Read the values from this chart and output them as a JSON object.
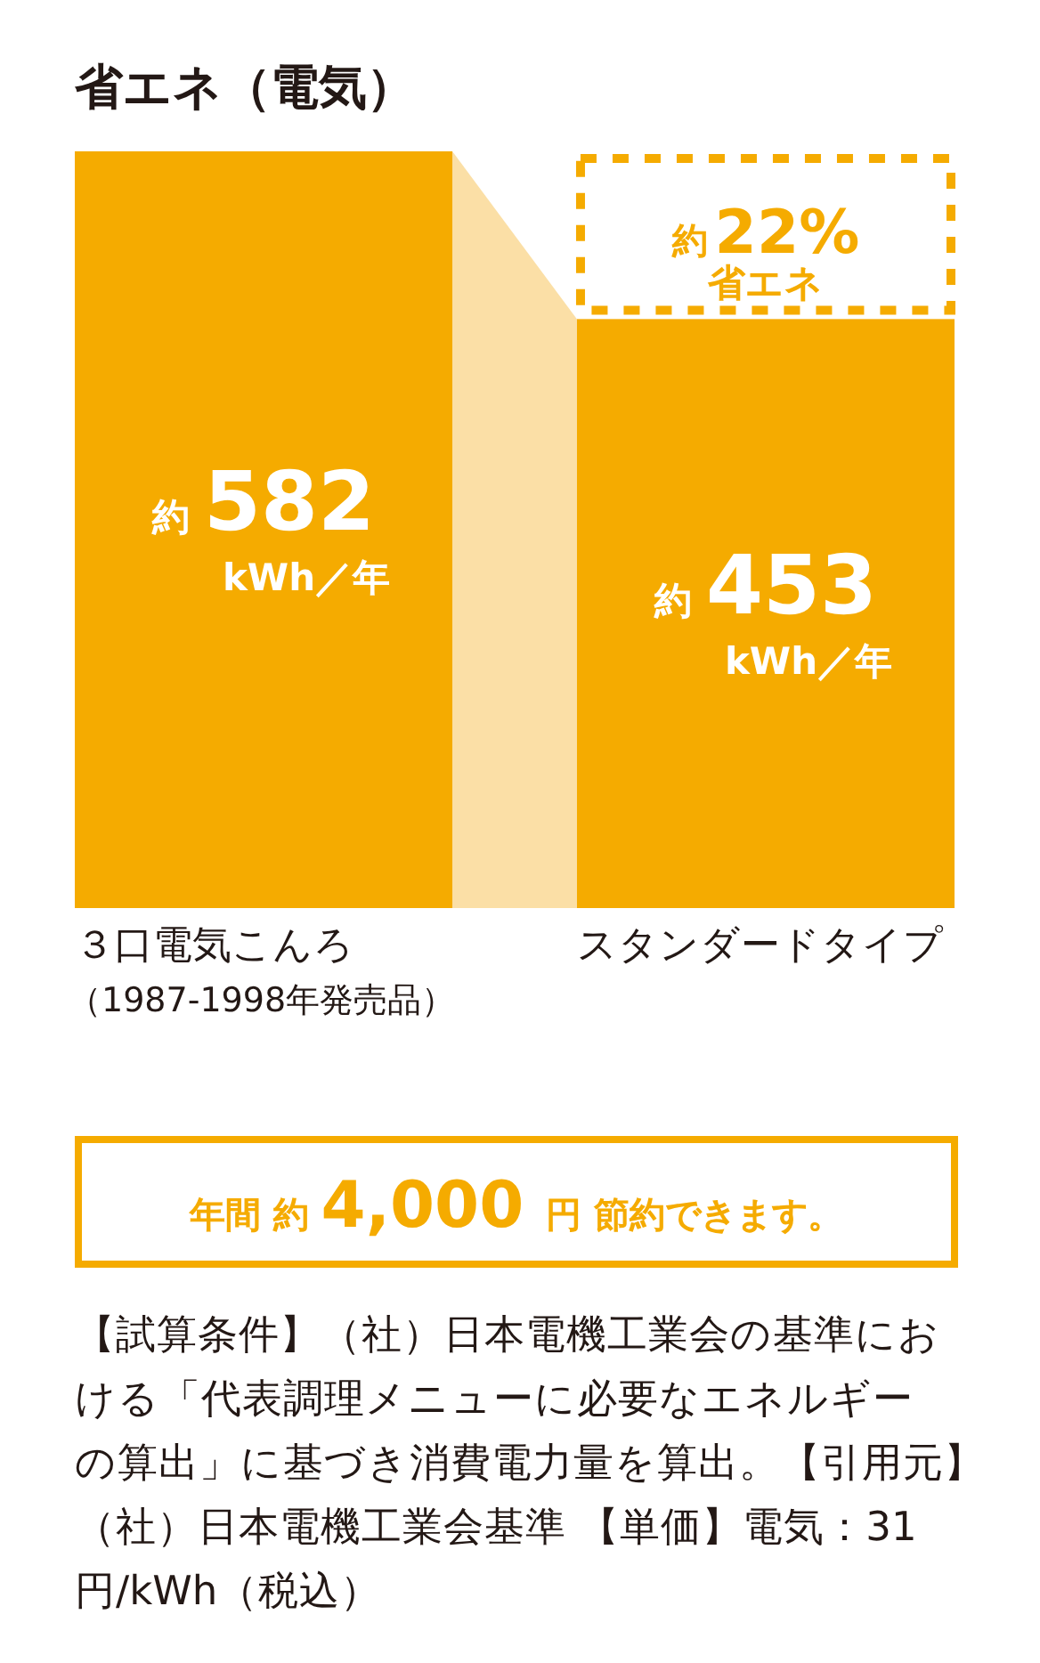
{
  "chart_data": {
    "type": "bar",
    "title": "省エネ（電気）",
    "categories": [
      "３口電気こんろ（1987-1998年発売品）",
      "スタンダードタイプ"
    ],
    "values": [
      582,
      453
    ],
    "color": "#f5ab00",
    "value_labels": [
      "約582kWh／年",
      "約453kWh／年"
    ],
    "bands": [
      {
        "axis": "x",
        "from": "３口電気こんろ（1987-1998年発売品）",
        "to": "スタンダードタイプ",
        "color": "#fbdfa6"
      }
    ],
    "annotations": [
      "約22%省エネ",
      "年間 約 4,000 円 節約できます。",
      "【試算条件】（社）日本電機工業会の基準における「代表調理メニューに必要なエネルギーの算出」に基づき消費電力量を算出。【引用元】（社）日本電機工業会基準 【単価】電気：31円/kWh（税込）"
    ]
  }
}
